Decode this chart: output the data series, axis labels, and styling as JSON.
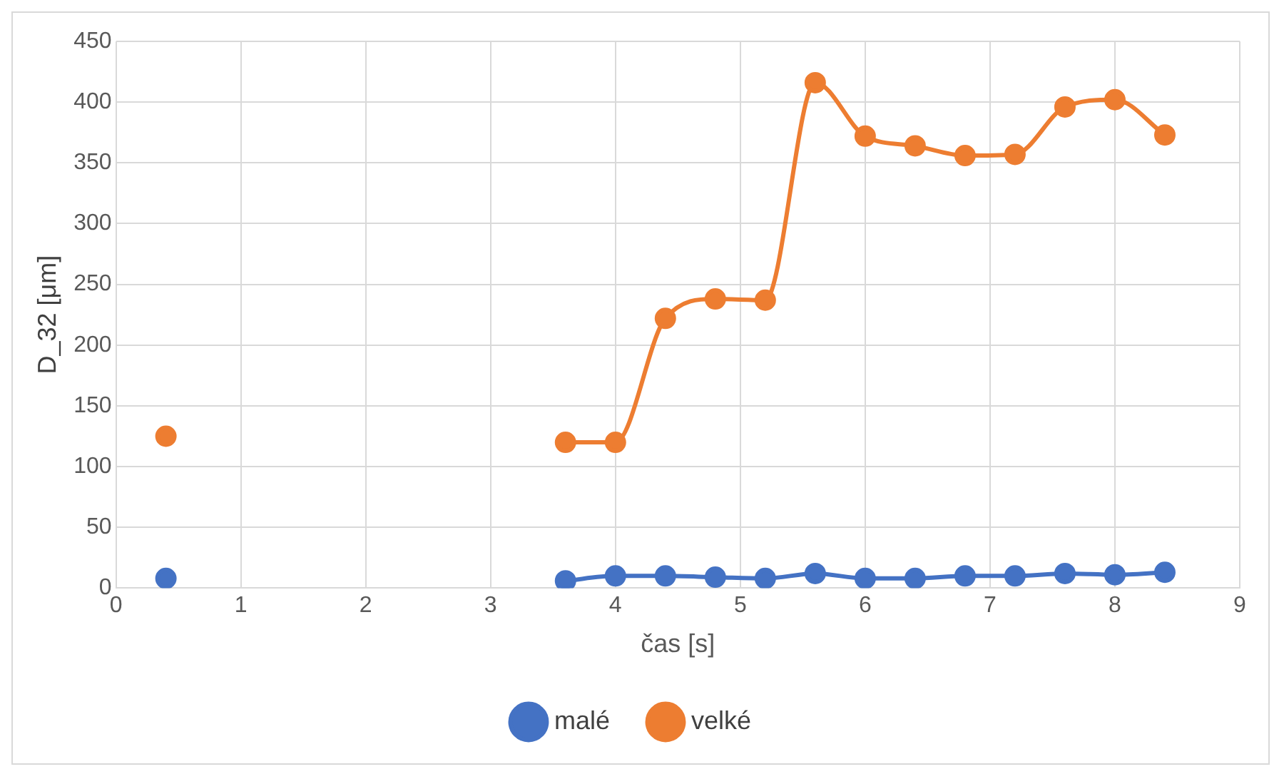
{
  "chart_data": {
    "type": "line",
    "xlabel": "čas [s]",
    "ylabel": "D_32 [μm]",
    "x": [
      0.4,
      2,
      3.6,
      4.0,
      4.4,
      4.8,
      5.2,
      5.6,
      6.0,
      6.4,
      6.8,
      7.2,
      7.6,
      8.0,
      8.4
    ],
    "series": [
      {
        "name": "malé",
        "color": "#4472c4",
        "values": [
          8,
          null,
          6,
          10,
          10,
          9,
          8,
          12,
          8,
          8,
          10,
          10,
          12,
          11,
          13
        ]
      },
      {
        "name": "velké",
        "color": "#ed7d31",
        "values": [
          125,
          null,
          120,
          120,
          222,
          238,
          237,
          416,
          372,
          364,
          356,
          357,
          396,
          402,
          373
        ]
      }
    ],
    "xlim": [
      0,
      9
    ],
    "xticks": [
      0,
      1,
      2,
      3,
      4,
      5,
      6,
      7,
      8,
      9
    ],
    "ylim": [
      0,
      450
    ],
    "yticks": [
      0,
      50,
      100,
      150,
      200,
      250,
      300,
      350,
      400,
      450
    ],
    "grid": true,
    "legend": "bottom",
    "marker": "circle",
    "line_style": "solid"
  }
}
